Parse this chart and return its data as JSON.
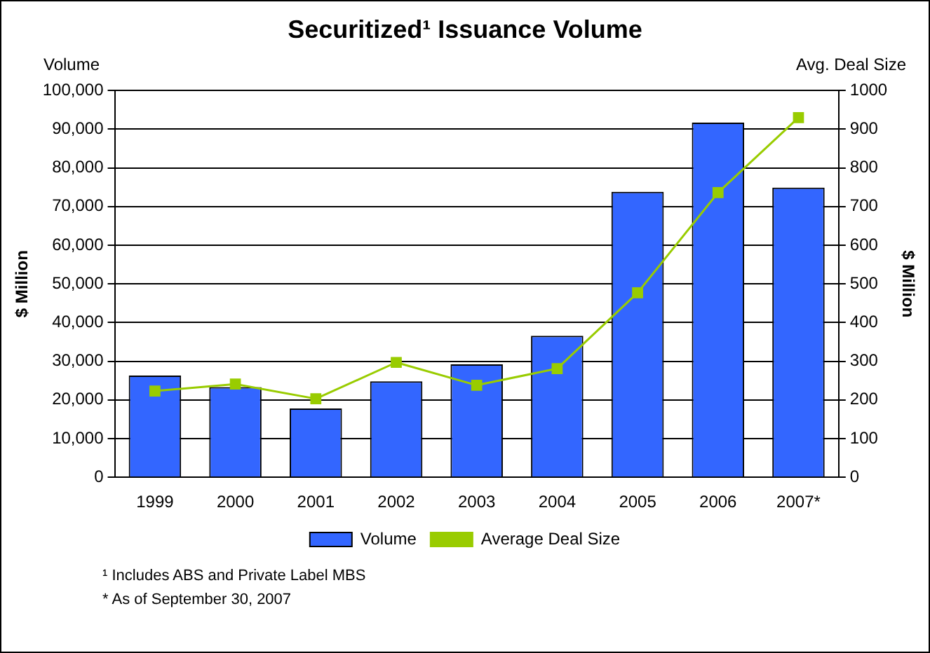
{
  "chart_data": {
    "type": "bar",
    "title": "Securitized¹ Issuance Volume",
    "ylabel": "$ Million",
    "y2label": "$ Million",
    "categories": [
      "1999",
      "2000",
      "2001",
      "2002",
      "2003",
      "2004",
      "2005",
      "2006",
      "2007*"
    ],
    "series": [
      {
        "name": "Volume",
        "color": "#3366ff",
        "values": [
          26300,
          23300,
          17800,
          24800,
          29200,
          36600,
          73800,
          91700,
          74900
        ]
      },
      {
        "name": "Average Deal Size",
        "type": "line",
        "axis": "y2",
        "color": "#99cc00",
        "marker": "square",
        "values": [
          223,
          241,
          203,
          297,
          238,
          281,
          477,
          736,
          930
        ]
      }
    ],
    "ylim": [
      0,
      100000
    ],
    "yticks": [
      0,
      {
        "value": 10000,
        "label": "10,000"
      },
      {
        "value": 20000,
        "label": "20,000"
      },
      {
        "value": 30000,
        "label": "30,000"
      },
      {
        "value": 40000,
        "label": "40,000"
      },
      {
        "value": 50000,
        "label": "50,000"
      },
      {
        "value": 60000,
        "label": "60,000"
      },
      {
        "value": 70000,
        "label": "70,000"
      },
      {
        "value": 80000,
        "label": "80,000"
      },
      {
        "value": 90000,
        "label": "90,000"
      },
      {
        "value": 100000,
        "label": "100,000"
      }
    ],
    "y2lim": [
      0,
      1000
    ],
    "y2ticks": [
      0,
      100,
      200,
      300,
      400,
      500,
      600,
      700,
      800,
      900,
      1000
    ],
    "grid": "y",
    "legend": "bottom",
    "annotations": [
      "Volume",
      "Avg. Deal Size",
      "¹  Includes ABS and Private Label MBS",
      "* As of September 30, 2007"
    ]
  }
}
